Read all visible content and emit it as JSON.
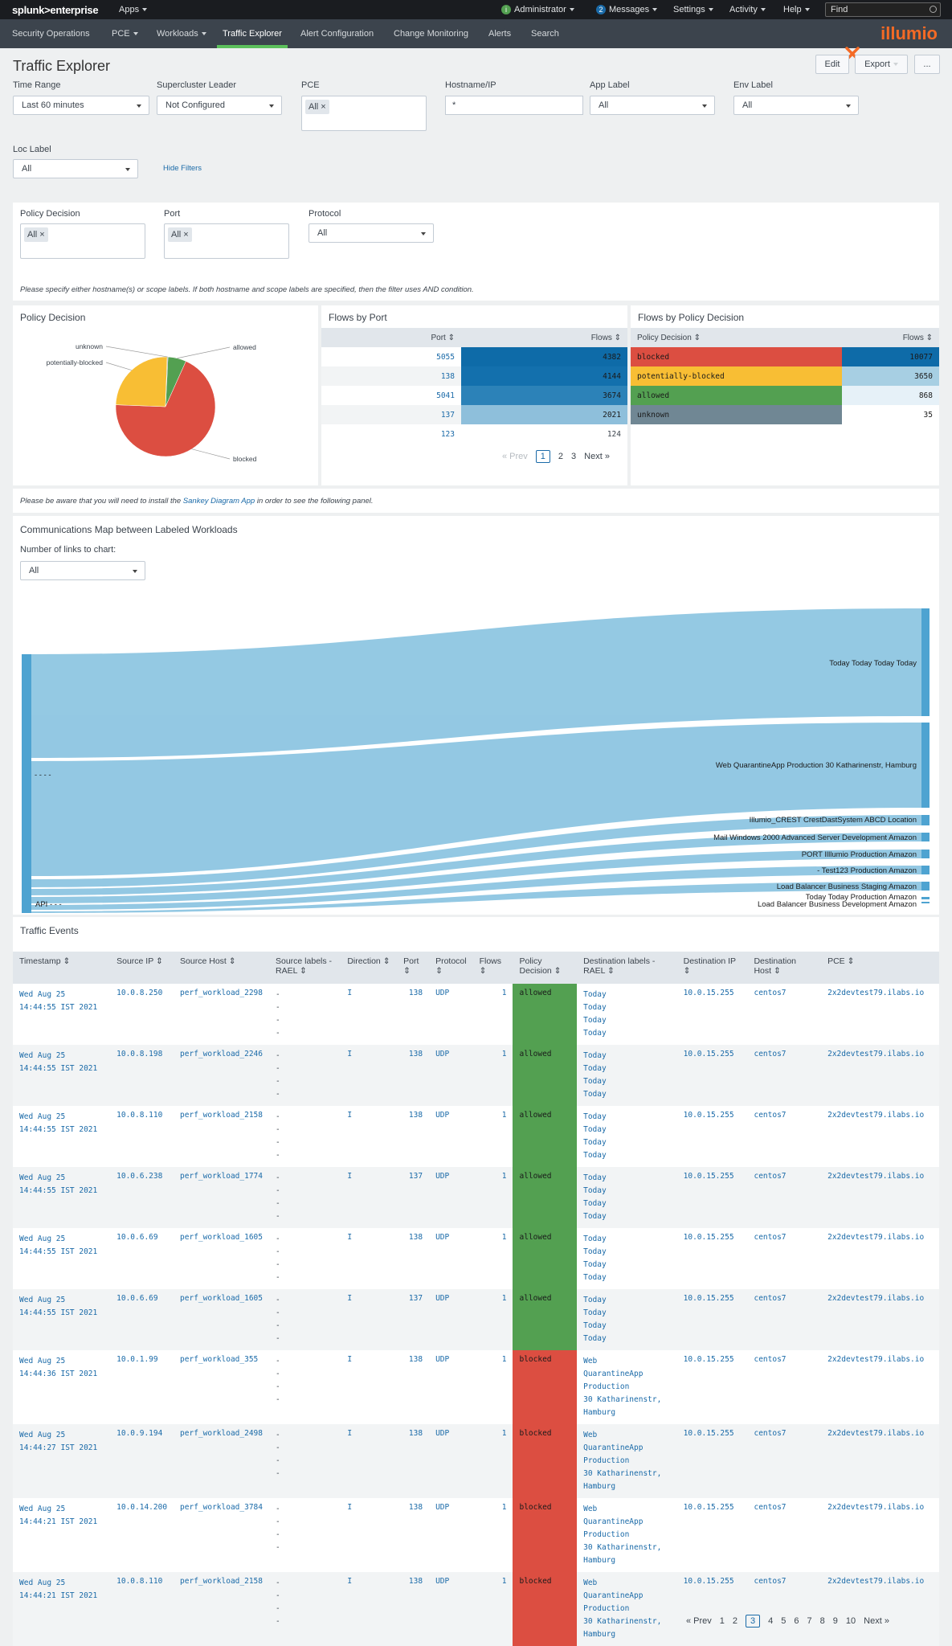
{
  "topbar": {
    "logo": "splunk>enterprise",
    "apps": "Apps",
    "administrator": "Administrator",
    "messages_count": "2",
    "messages": "Messages",
    "settings": "Settings",
    "activity": "Activity",
    "help": "Help",
    "find_placeholder": "Find"
  },
  "nav": {
    "items": [
      "Security Operations",
      "PCE",
      "Workloads",
      "Traffic Explorer",
      "Alert Configuration",
      "Change Monitoring",
      "Alerts",
      "Search"
    ],
    "brand": "illumio"
  },
  "header": {
    "title": "Traffic Explorer",
    "edit": "Edit",
    "export": "Export",
    "more": "..."
  },
  "filters": {
    "time_range": {
      "label": "Time Range",
      "value": "Last 60 minutes"
    },
    "supercluster": {
      "label": "Supercluster Leader",
      "value": "Not Configured"
    },
    "pce": {
      "label": "PCE",
      "chip": "All"
    },
    "hostname": {
      "label": "Hostname/IP",
      "value": "*"
    },
    "app_label": {
      "label": "App Label",
      "value": "All"
    },
    "env_label": {
      "label": "Env Label",
      "value": "All"
    },
    "loc_label": {
      "label": "Loc Label",
      "value": "All"
    },
    "hide_filters": "Hide Filters"
  },
  "filters2": {
    "policy_decision": {
      "label": "Policy Decision",
      "chip": "All"
    },
    "port": {
      "label": "Port",
      "chip": "All"
    },
    "protocol": {
      "label": "Protocol",
      "value": "All"
    },
    "note": "Please specify either hostname(s) or scope labels. If both hostname and scope labels are specified, then the filter uses AND condition."
  },
  "policy_panel": {
    "title": "Policy Decision",
    "chart_data": {
      "type": "pie",
      "labels": [
        "blocked",
        "potentially-blocked",
        "allowed",
        "unknown"
      ],
      "values": [
        10077,
        3650,
        868,
        35
      ],
      "colors": [
        "#dc4e41",
        "#f8be34",
        "#53a051",
        "#708794"
      ]
    }
  },
  "flows_port": {
    "title": "Flows by Port",
    "headers": [
      "Port",
      "Flows"
    ],
    "rows": [
      {
        "port": "5055",
        "flows": "4382"
      },
      {
        "port": "138",
        "flows": "4144"
      },
      {
        "port": "5041",
        "flows": "3674"
      },
      {
        "port": "137",
        "flows": "2021"
      },
      {
        "port": "123",
        "flows": "124"
      }
    ],
    "pager": {
      "prev": "« Prev",
      "pages": [
        "1",
        "2",
        "3"
      ],
      "next": "Next »"
    }
  },
  "flows_policy": {
    "title": "Flows by Policy Decision",
    "headers": [
      "Policy Decision",
      "Flows"
    ],
    "rows": [
      {
        "decision": "blocked",
        "flows": "10077",
        "color": "#dc4e41",
        "flow_bg": "#0e6ba8"
      },
      {
        "decision": "potentially-blocked",
        "flows": "3650",
        "color": "#f8be34",
        "flow_bg": "#a7cfe3"
      },
      {
        "decision": "allowed",
        "flows": "868",
        "color": "#53a051",
        "flow_bg": "#e6f1f8"
      },
      {
        "decision": "unknown",
        "flows": "35",
        "color": "#708794",
        "flow_bg": "#ffffff"
      }
    ]
  },
  "sankey_note": {
    "pre": "Please be aware that you will need to install the ",
    "link": "Sankey Diagram App",
    "post": " in order to see the following panel."
  },
  "sankey": {
    "title": "Communications Map between Labeled Workloads",
    "links_label": "Number of links to chart:",
    "links_value": "All",
    "source_labels": [
      "- - - -",
      "API - - -"
    ],
    "targets": [
      "Today Today Today Today",
      "Web QuarantineApp Production 30 Katharinenstr, Hamburg",
      "Illumio_CREST CrestDastSystem ABCD Location",
      "Mail Windows 2000 Advanced Server Development Amazon",
      "PORT Illlumio Production Amazon",
      "- Test123 Production Amazon",
      "Load Balancer Business Staging Amazon",
      "Today Today Production Amazon",
      "Load Balancer Business Development Amazon"
    ]
  },
  "events": {
    "title": "Traffic Events",
    "headers": [
      "Timestamp",
      "Source IP",
      "Source Host",
      "Source labels - RAEL",
      "Direction",
      "Port",
      "Protocol",
      "Flows",
      "Policy Decision",
      "Destination labels - RAEL",
      "Destination IP",
      "Destination Host",
      "PCE"
    ],
    "rows": [
      {
        "ts1": "Wed Aug 25",
        "ts2": "14:44:55 IST 2021",
        "sip": "10.0.8.250",
        "shost": "perf_workload_2298",
        "dir": "I",
        "port": "138",
        "proto": "UDP",
        "flows": "1",
        "pd": "allowed",
        "dest": [
          "Today",
          "Today",
          "Today",
          "Today"
        ],
        "dip": "10.0.15.255",
        "dhost": "centos7",
        "pce": "2x2devtest79.ilabs.io"
      },
      {
        "ts1": "Wed Aug 25",
        "ts2": "14:44:55 IST 2021",
        "sip": "10.0.8.198",
        "shost": "perf_workload_2246",
        "dir": "I",
        "port": "138",
        "proto": "UDP",
        "flows": "1",
        "pd": "allowed",
        "dest": [
          "Today",
          "Today",
          "Today",
          "Today"
        ],
        "dip": "10.0.15.255",
        "dhost": "centos7",
        "pce": "2x2devtest79.ilabs.io"
      },
      {
        "ts1": "Wed Aug 25",
        "ts2": "14:44:55 IST 2021",
        "sip": "10.0.8.110",
        "shost": "perf_workload_2158",
        "dir": "I",
        "port": "138",
        "proto": "UDP",
        "flows": "1",
        "pd": "allowed",
        "dest": [
          "Today",
          "Today",
          "Today",
          "Today"
        ],
        "dip": "10.0.15.255",
        "dhost": "centos7",
        "pce": "2x2devtest79.ilabs.io"
      },
      {
        "ts1": "Wed Aug 25",
        "ts2": "14:44:55 IST 2021",
        "sip": "10.0.6.238",
        "shost": "perf_workload_1774",
        "dir": "I",
        "port": "137",
        "proto": "UDP",
        "flows": "1",
        "pd": "allowed",
        "dest": [
          "Today",
          "Today",
          "Today",
          "Today"
        ],
        "dip": "10.0.15.255",
        "dhost": "centos7",
        "pce": "2x2devtest79.ilabs.io"
      },
      {
        "ts1": "Wed Aug 25",
        "ts2": "14:44:55 IST 2021",
        "sip": "10.0.6.69",
        "shost": "perf_workload_1605",
        "dir": "I",
        "port": "138",
        "proto": "UDP",
        "flows": "1",
        "pd": "allowed",
        "dest": [
          "Today",
          "Today",
          "Today",
          "Today"
        ],
        "dip": "10.0.15.255",
        "dhost": "centos7",
        "pce": "2x2devtest79.ilabs.io"
      },
      {
        "ts1": "Wed Aug 25",
        "ts2": "14:44:55 IST 2021",
        "sip": "10.0.6.69",
        "shost": "perf_workload_1605",
        "dir": "I",
        "port": "137",
        "proto": "UDP",
        "flows": "1",
        "pd": "allowed",
        "dest": [
          "Today",
          "Today",
          "Today",
          "Today"
        ],
        "dip": "10.0.15.255",
        "dhost": "centos7",
        "pce": "2x2devtest79.ilabs.io"
      },
      {
        "ts1": "Wed Aug 25",
        "ts2": "14:44:36 IST 2021",
        "sip": "10.0.1.99",
        "shost": "perf_workload_355",
        "dir": "I",
        "port": "138",
        "proto": "UDP",
        "flows": "1",
        "pd": "blocked",
        "dest": [
          "Web",
          "QuarantineApp",
          "Production",
          "30 Katharinenstr,",
          "Hamburg"
        ],
        "dip": "10.0.15.255",
        "dhost": "centos7",
        "pce": "2x2devtest79.ilabs.io"
      },
      {
        "ts1": "Wed Aug 25",
        "ts2": "14:44:27 IST 2021",
        "sip": "10.0.9.194",
        "shost": "perf_workload_2498",
        "dir": "I",
        "port": "138",
        "proto": "UDP",
        "flows": "1",
        "pd": "blocked",
        "dest": [
          "Web",
          "QuarantineApp",
          "Production",
          "30 Katharinenstr,",
          "Hamburg"
        ],
        "dip": "10.0.15.255",
        "dhost": "centos7",
        "pce": "2x2devtest79.ilabs.io"
      },
      {
        "ts1": "Wed Aug 25",
        "ts2": "14:44:21 IST 2021",
        "sip": "10.0.14.200",
        "shost": "perf_workload_3784",
        "dir": "I",
        "port": "138",
        "proto": "UDP",
        "flows": "1",
        "pd": "blocked",
        "dest": [
          "Web",
          "QuarantineApp",
          "Production",
          "30 Katharinenstr,",
          "Hamburg"
        ],
        "dip": "10.0.15.255",
        "dhost": "centos7",
        "pce": "2x2devtest79.ilabs.io"
      },
      {
        "ts1": "Wed Aug 25",
        "ts2": "14:44:21 IST 2021",
        "sip": "10.0.8.110",
        "shost": "perf_workload_2158",
        "dir": "I",
        "port": "138",
        "proto": "UDP",
        "flows": "1",
        "pd": "blocked",
        "dest": [
          "Web",
          "QuarantineApp",
          "Production",
          "30 Katharinenstr,",
          "Hamburg"
        ],
        "dip": "10.0.15.255",
        "dhost": "centos7",
        "pce": "2x2devtest79.ilabs.io"
      }
    ],
    "source_dashes": "-",
    "pager": {
      "prev": "« Prev",
      "pages": [
        "1",
        "2",
        "3",
        "4",
        "5",
        "6",
        "7",
        "8",
        "9",
        "10"
      ],
      "current": "3",
      "next": "Next »"
    }
  }
}
